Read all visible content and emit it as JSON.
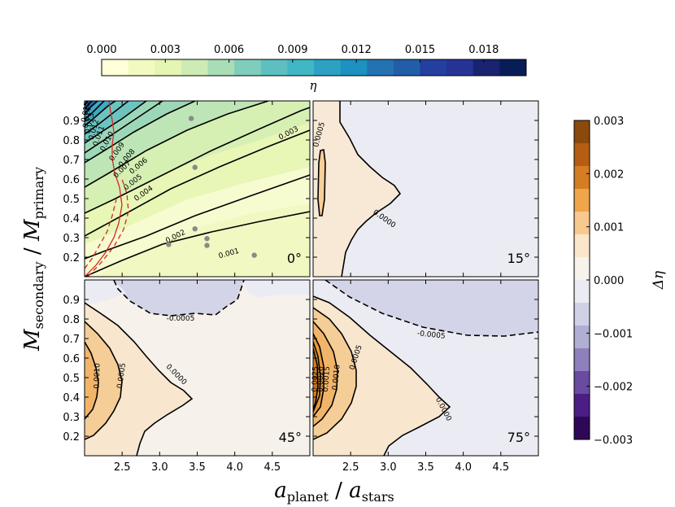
{
  "chart_data": {
    "type": "heatmap",
    "xlabel": {
      "main": "a",
      "sub": "planet",
      "sep": " / ",
      "main2": "a",
      "sub2": "stars"
    },
    "ylabel": {
      "main": "M",
      "sub": "secondary",
      "sep": " / ",
      "main2": "M",
      "sub2": "primary"
    },
    "xlim": [
      2.0,
      5.0
    ],
    "ylim": [
      0.1,
      1.0
    ],
    "xticks": [
      "2.5",
      "3.0",
      "3.5",
      "4.0",
      "4.5"
    ],
    "xtick_values": [
      2.5,
      3.0,
      3.5,
      4.0,
      4.5
    ],
    "yticks": [
      "0.2",
      "0.3",
      "0.4",
      "0.5",
      "0.6",
      "0.7",
      "0.8",
      "0.9"
    ],
    "ytick_values": [
      0.2,
      0.3,
      0.4,
      0.5,
      0.6,
      0.7,
      0.8,
      0.9
    ],
    "top_colorbar": {
      "label": "η",
      "range": [
        0.0,
        0.02
      ],
      "ticks": [
        "0.000",
        "0.003",
        "0.006",
        "0.009",
        "0.012",
        "0.015",
        "0.018"
      ],
      "tick_values": [
        0.0,
        0.003,
        0.006,
        0.009,
        0.012,
        0.015,
        0.018
      ],
      "colors": [
        "#ffffd9",
        "#f3fac1",
        "#e5f5b2",
        "#cdebb4",
        "#a8ddb6",
        "#7fcdbb",
        "#5dbfc0",
        "#41b6c4",
        "#2ca1c2",
        "#1d91c0",
        "#2373b2",
        "#225ea8",
        "#233fa0",
        "#253494",
        "#1a2370",
        "#081d58"
      ]
    },
    "right_colorbar": {
      "label": "Δη",
      "ticks": [
        "0.003",
        "0.002",
        "0.001",
        "0.000",
        "−0.001",
        "−0.002",
        "−0.003"
      ],
      "tick_values": [
        0.003,
        0.002,
        0.001,
        0.0,
        -0.001,
        -0.002,
        -0.003
      ],
      "colors": [
        "#8b4a0c",
        "#b55e13",
        "#d57d23",
        "#f0a54a",
        "#f8c98e",
        "#fbe6cc",
        "#f7f2ea",
        "#ebebf3",
        "#d0d0e6",
        "#b0aed3",
        "#8e80bd",
        "#6a4ba2",
        "#4b1e85",
        "#2e0856"
      ]
    },
    "panels": [
      {
        "title": "0°",
        "quantity": "η",
        "fill": "#f2f8c2",
        "contour_labels": [
          "0.003",
          "0.002",
          "0.001",
          "0.004",
          "0.005",
          "0.006",
          "0.007",
          "0.008",
          "0.009",
          "0.010",
          "0.011",
          "0.012",
          "0.013",
          "0.014",
          "0.015"
        ],
        "points": [
          [
            3.42,
            0.91
          ],
          [
            3.47,
            0.66
          ],
          [
            3.47,
            0.345
          ],
          [
            3.63,
            0.295
          ],
          [
            3.63,
            0.26
          ],
          [
            3.12,
            0.265
          ],
          [
            4.26,
            0.21
          ]
        ]
      },
      {
        "title": "15°",
        "quantity": "Δη",
        "fill": "#ebebf3",
        "contour_labels": [
          "0.0005",
          "0.0000"
        ]
      },
      {
        "title": "45°",
        "quantity": "Δη",
        "fill": "#f6f1ea",
        "contour_labels": [
          "-0.0005",
          "0.0010",
          "0.0005",
          "0.0000"
        ]
      },
      {
        "title": "75°",
        "quantity": "Δη",
        "fill": "#ebebf3",
        "contour_labels": [
          "-0.0005",
          "0.0025",
          "0.0020",
          "0.0015",
          "0.0010",
          "0.0005",
          "0.0000"
        ]
      }
    ]
  }
}
